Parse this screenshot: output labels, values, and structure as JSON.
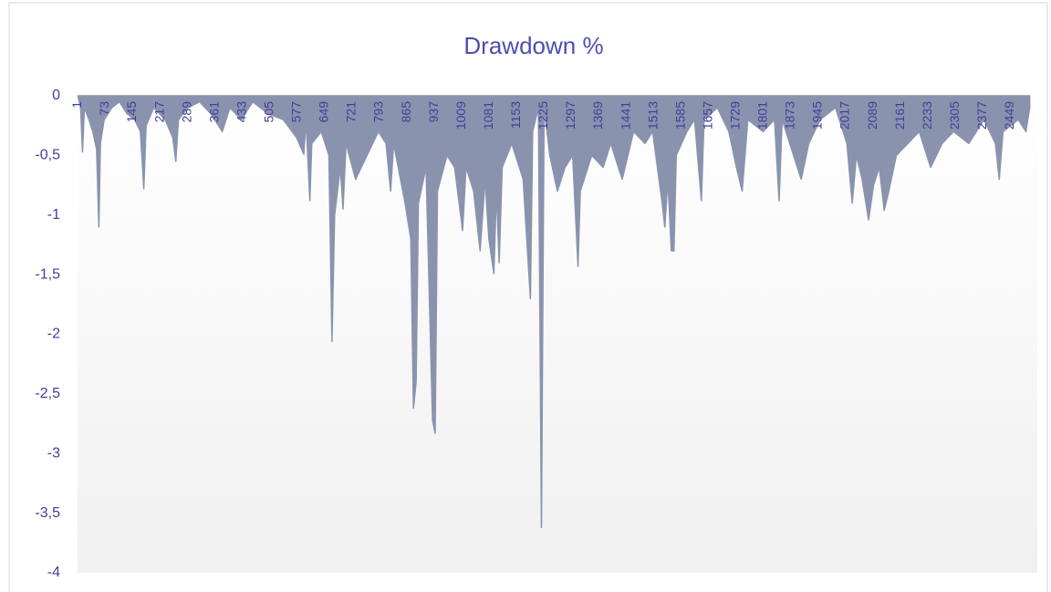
{
  "chart_data": {
    "type": "area",
    "title": "Drawdown %",
    "color": "#8a93ae",
    "x": [
      1,
      8,
      13,
      18,
      30,
      40,
      50,
      56,
      60,
      70,
      90,
      110,
      130,
      150,
      165,
      174,
      180,
      200,
      230,
      250,
      258,
      265,
      290,
      320,
      350,
      380,
      400,
      430,
      460,
      500,
      540,
      575,
      594,
      600,
      610,
      615,
      640,
      660,
      668,
      675,
      690,
      697,
      705,
      730,
      760,
      790,
      810,
      822,
      830,
      860,
      875,
      882,
      889,
      895,
      915,
      932,
      939,
      945,
      970,
      990,
      1011,
      1020,
      1040,
      1057,
      1070,
      1080,
      1093,
      1100,
      1107,
      1115,
      1140,
      1170,
      1189,
      1195,
      1210,
      1218,
      1225,
      1240,
      1260,
      1280,
      1300,
      1314,
      1320,
      1350,
      1380,
      1400,
      1430,
      1460,
      1490,
      1510,
      1535,
      1542,
      1550,
      1559,
      1566,
      1572,
      1600,
      1620,
      1638,
      1645,
      1680,
      1710,
      1730,
      1745,
      1760,
      1800,
      1830,
      1842,
      1850,
      1880,
      1900,
      1920,
      1950,
      1990,
      2020,
      2034,
      2045,
      2060,
      2077,
      2090,
      2105,
      2118,
      2130,
      2150,
      2180,
      2210,
      2240,
      2270,
      2300,
      2340,
      2380,
      2410,
      2420,
      2430,
      2470,
      2490,
      2500
    ],
    "values": [
      0,
      -0.1,
      -0.47,
      -0.1,
      -0.2,
      -0.3,
      -0.45,
      -1.1,
      -0.4,
      -0.2,
      -0.1,
      -0.05,
      -0.15,
      -0.2,
      -0.3,
      -0.78,
      -0.25,
      -0.1,
      -0.2,
      -0.35,
      -0.55,
      -0.2,
      -0.1,
      -0.05,
      -0.15,
      -0.3,
      -0.1,
      -0.2,
      -0.05,
      -0.15,
      -0.2,
      -0.35,
      -0.49,
      -0.2,
      -0.88,
      -0.4,
      -0.3,
      -0.5,
      -2.06,
      -1.0,
      -0.6,
      -0.95,
      -0.4,
      -0.7,
      -0.5,
      -0.3,
      -0.4,
      -0.8,
      -0.4,
      -0.9,
      -1.2,
      -2.62,
      -2.4,
      -0.9,
      -0.6,
      -2.72,
      -2.83,
      -0.8,
      -0.5,
      -0.6,
      -1.13,
      -0.6,
      -0.8,
      -1.3,
      -0.7,
      -1.2,
      -1.49,
      -0.8,
      -1.4,
      -0.6,
      -0.4,
      -0.7,
      -1.7,
      -0.3,
      -0.1,
      -3.62,
      -0.1,
      -0.5,
      -0.8,
      -0.6,
      -0.5,
      -1.43,
      -0.8,
      -0.5,
      -0.6,
      -0.4,
      -0.7,
      -0.3,
      -0.4,
      -0.3,
      -0.9,
      -1.1,
      -0.7,
      -1.3,
      -1.3,
      -0.5,
      -0.3,
      -0.2,
      -0.88,
      -0.2,
      -0.1,
      -0.3,
      -0.6,
      -0.8,
      -0.2,
      -0.3,
      -0.2,
      -0.88,
      -0.2,
      -0.5,
      -0.7,
      -0.4,
      -0.2,
      -0.1,
      -0.4,
      -0.9,
      -0.5,
      -0.7,
      -1.04,
      -0.75,
      -0.6,
      -0.96,
      -0.8,
      -0.5,
      -0.4,
      -0.3,
      -0.6,
      -0.4,
      -0.3,
      -0.4,
      -0.2,
      -0.4,
      -0.7,
      -0.3,
      -0.2,
      -0.3,
      -0.1
    ],
    "xlim": [
      0,
      2520
    ],
    "xticks": [
      1,
      73,
      145,
      217,
      289,
      361,
      433,
      505,
      577,
      649,
      721,
      793,
      865,
      937,
      1009,
      1081,
      1153,
      1225,
      1297,
      1369,
      1441,
      1513,
      1585,
      1657,
      1729,
      1801,
      1873,
      1945,
      2017,
      2089,
      2161,
      2233,
      2305,
      2377,
      2449
    ],
    "ylim": [
      -4,
      0
    ],
    "yticks": [
      0,
      {
        "value": -0.5,
        "label": "-0,5"
      },
      -1,
      {
        "value": -1.5,
        "label": "-1,5"
      },
      -2,
      {
        "value": -2.5,
        "label": "-2,5"
      },
      -3,
      {
        "value": -3.5,
        "label": "-3,5"
      },
      -4
    ],
    "grid": false
  }
}
